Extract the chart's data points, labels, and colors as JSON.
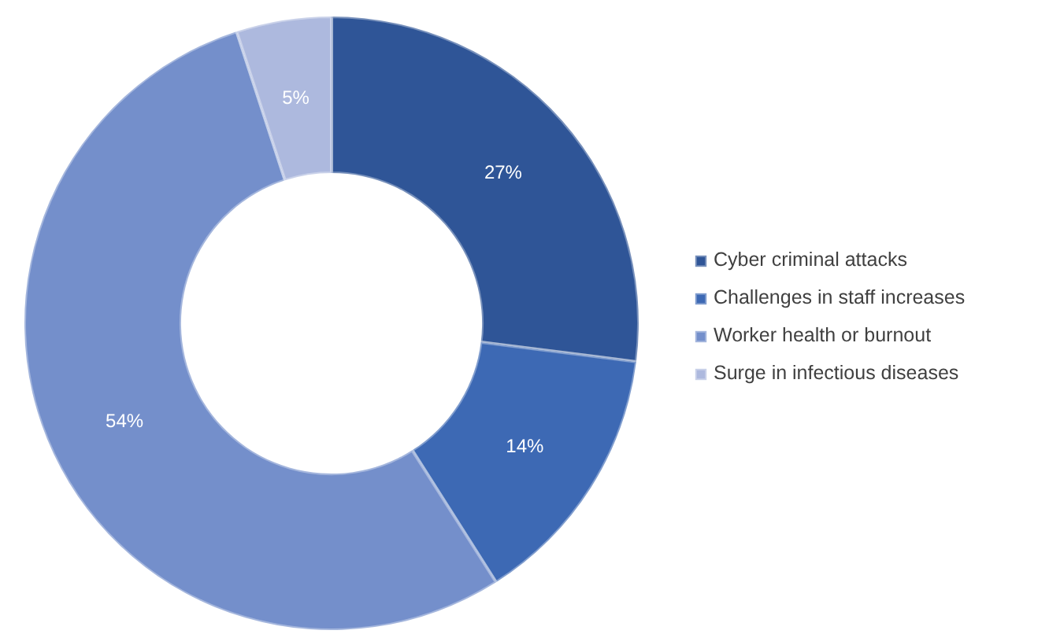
{
  "chart_data": {
    "type": "donut",
    "categories": [
      "Cyber criminal attacks",
      "Challenges in staff increases",
      "Worker health or burnout",
      "Surge in infectious diseases"
    ],
    "values": [
      27,
      14,
      54,
      5
    ],
    "colors": [
      "#2f5597",
      "#3d69b4",
      "#748fcb",
      "#adb9de"
    ],
    "value_labels": [
      "27%",
      "14%",
      "54%",
      "5%"
    ],
    "legend": "right"
  }
}
